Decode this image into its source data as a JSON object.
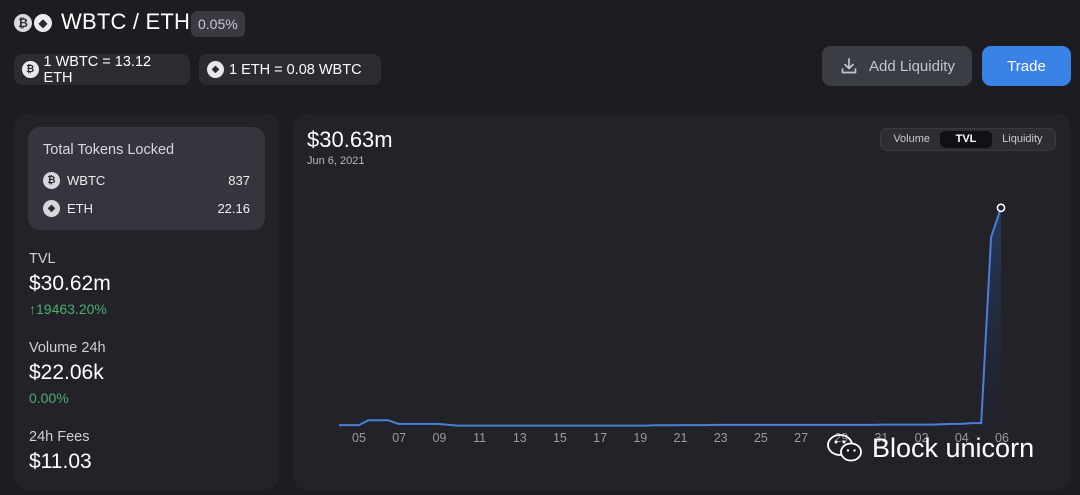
{
  "header": {
    "pair_title": "WBTC / ETH",
    "fee_tier": "0.05%",
    "rate_1": "1 WBTC = 13.12 ETH",
    "rate_2": "1 ETH = 0.08 WBTC",
    "add_liquidity_label": "Add Liquidity",
    "trade_label": "Trade",
    "icons": [
      "bitcoin-icon",
      "ethereum-icon",
      "download-icon"
    ]
  },
  "locked": {
    "title": "Total Tokens Locked",
    "tokens": [
      {
        "symbol": "WBTC",
        "amount": "837"
      },
      {
        "symbol": "ETH",
        "amount": "22.16"
      }
    ]
  },
  "stats": {
    "tvl_label": "TVL",
    "tvl_value": "$30.62m",
    "tvl_change": "↑19463.20%",
    "volume_label": "Volume 24h",
    "volume_value": "$22.06k",
    "volume_change": "0.00%",
    "fees_label": "24h Fees",
    "fees_value": "$11.03"
  },
  "chart_header": {
    "value": "$30.63m",
    "date": "Jun 6, 2021",
    "toggle": [
      "Volume",
      "TVL",
      "Liquidity"
    ],
    "active": "TVL"
  },
  "colors": {
    "accent": "#3b82e6",
    "positive": "#4caf6e",
    "line": "#4a7fd6"
  },
  "chart_data": {
    "type": "area",
    "title": "",
    "xlabel": "",
    "ylabel": "",
    "x_ticks": [
      "05",
      "07",
      "09",
      "11",
      "13",
      "15",
      "17",
      "19",
      "21",
      "23",
      "25",
      "27",
      "29",
      "31",
      "02",
      "04",
      "06"
    ],
    "series": [
      {
        "values": [
          0.12,
          0.12,
          0.12,
          0.82,
          0.82,
          0.8,
          0.3,
          0.3,
          0.3,
          0.3,
          0.3,
          0.18,
          0.06,
          0.06,
          0.06,
          0.06,
          0.06,
          0.06,
          0.06,
          0.06,
          0.06,
          0.06,
          0.06,
          0.06,
          0.06,
          0.06,
          0.06,
          0.06,
          0.06,
          0.06,
          0.06,
          0.06,
          0.1,
          0.1,
          0.1,
          0.12,
          0.12,
          0.12,
          0.15,
          0.15,
          0.15,
          0.15,
          0.15,
          0.15,
          0.15,
          0.15,
          0.15,
          0.15,
          0.15,
          0.15,
          0.15,
          0.15,
          0.15,
          0.15,
          0.15,
          0.2,
          0.2,
          0.2,
          0.2,
          0.2,
          0.2,
          0.25,
          0.3,
          0.3,
          0.4,
          0.4,
          26.5,
          30.63
        ]
      }
    ],
    "units": "$m",
    "highlight_point": {
      "date": "Jun 6, 2021",
      "value": 30.63
    },
    "ylim": [
      0,
      32
    ],
    "grid": false
  },
  "watermark": "Block unicorn"
}
